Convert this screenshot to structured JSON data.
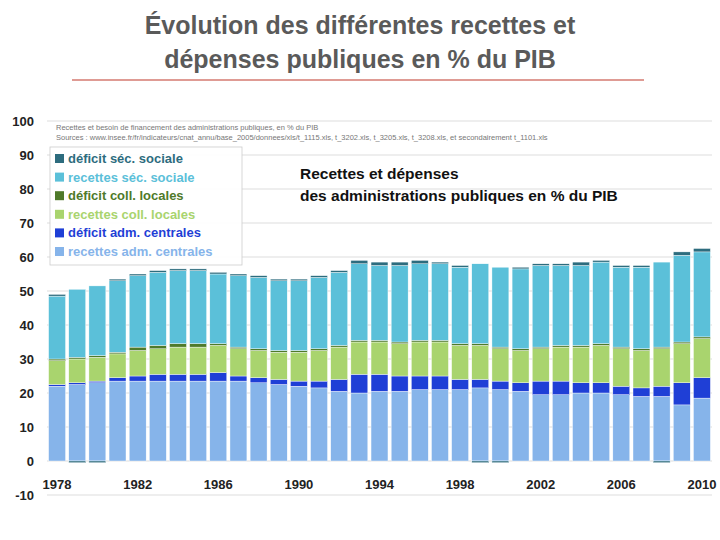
{
  "chart_data": {
    "type": "bar",
    "stacked": true,
    "title": "Évolution des différentes recettes et\ndépenses publiques en % du PIB",
    "subtitle": "Recettes et dépenses\ndes administrations publiques en % du PIB",
    "annotations": [
      "Recettes et besoin de financement des administrations publiques, en % du PIB",
      "Sources : www.insee.fr/fr/indicateurs/cnat_annu/base_2005/donnees/xls/t_1115.xls, t_3202.xls, t_3205.xls, t_3208.xls, et secondairement t_1101.xls"
    ],
    "categories": [
      "1978",
      null,
      null,
      null,
      "1982",
      null,
      null,
      null,
      "1986",
      null,
      null,
      null,
      "1990",
      null,
      null,
      null,
      "1994",
      null,
      null,
      null,
      "1998",
      null,
      null,
      null,
      "2002",
      null,
      null,
      null,
      "2006",
      null,
      null,
      null,
      "2010"
    ],
    "series": [
      {
        "name": "recettes adm. centrales",
        "color": "#86b4ea",
        "values": [
          22,
          22.5,
          23,
          23.5,
          23.5,
          23.5,
          23.5,
          23.5,
          23.5,
          23.5,
          23,
          22.5,
          22,
          21.5,
          20.5,
          20,
          20.5,
          20.5,
          21,
          21,
          21,
          21.5,
          21,
          20.5,
          19.5,
          19.5,
          20,
          20,
          19.5,
          19,
          19,
          16.5,
          18.5
        ]
      },
      {
        "name": "déficit adm. centrales",
        "color": "#1f3fd6",
        "values": [
          0.5,
          0.5,
          0.5,
          1,
          1.5,
          2,
          2,
          2,
          2.5,
          1.5,
          1.5,
          1.5,
          1.5,
          2,
          3.5,
          5.5,
          5,
          4.5,
          4,
          4,
          3,
          2.5,
          2.5,
          2.5,
          4,
          4,
          3,
          3,
          2.5,
          2.5,
          3,
          6.5,
          6
        ]
      },
      {
        "name": "recettes coll. locales",
        "color": "#a9d46e",
        "values": [
          7,
          7,
          7,
          7,
          7.5,
          7.5,
          8,
          8,
          8,
          8,
          8,
          8,
          8.5,
          9,
          9.5,
          9.5,
          9.5,
          9.5,
          10,
          10,
          10,
          10,
          9.5,
          9.5,
          9.5,
          10,
          10.5,
          11,
          11,
          11,
          11,
          11.5,
          11.5
        ]
      },
      {
        "name": "déficit coll. locales",
        "color": "#4f7a2a",
        "values": [
          0.5,
          0.5,
          0.5,
          0.5,
          1,
          1,
          1,
          1,
          0.5,
          0.5,
          0.5,
          0.5,
          0.5,
          0.5,
          0.5,
          0.5,
          0.5,
          0.5,
          0.5,
          0.5,
          0.5,
          0.5,
          0.5,
          0.5,
          0.5,
          0.5,
          0.5,
          0.5,
          0.5,
          0.5,
          0.5,
          0.5,
          0.5
        ]
      },
      {
        "name": "recettes séc. sociale",
        "color": "#5bc0d9",
        "values": [
          18.5,
          20,
          20.5,
          21,
          21,
          21.5,
          21.5,
          21.5,
          20.5,
          21,
          21,
          20.5,
          20.5,
          21,
          21.5,
          22.5,
          22,
          22.5,
          22.5,
          22.5,
          22.5,
          23.5,
          23.5,
          23.5,
          24,
          23.5,
          23.5,
          24,
          23.5,
          24,
          25,
          25.5,
          25
        ]
      },
      {
        "name": "déficit séc. sociale",
        "color": "#2d6c7e",
        "values": [
          0.5,
          -0.5,
          -0.5,
          0.5,
          0.5,
          0.5,
          0.5,
          0.5,
          0.5,
          0.5,
          0.5,
          0.5,
          0.5,
          0.5,
          0.5,
          1,
          1,
          1,
          1,
          0.5,
          0.5,
          -0.5,
          -0.5,
          0.5,
          0.5,
          0.5,
          1,
          0.5,
          0.5,
          0.5,
          -0.5,
          1,
          1
        ]
      }
    ],
    "ylim": [
      -10,
      100
    ],
    "yticks": [
      -10,
      0,
      10,
      20,
      30,
      40,
      50,
      60,
      70,
      80,
      90,
      100
    ],
    "grid": true,
    "legend": "upper left"
  }
}
